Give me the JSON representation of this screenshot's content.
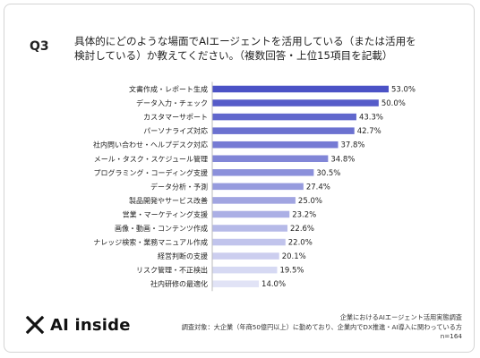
{
  "header": {
    "question_number": "Q3",
    "question_line1": "具体的にどのような場面でAIエージェントを活用している（または活用を",
    "question_line2": "検討している）か教えてください。（複数回答・上位15項目を記載）"
  },
  "chart_data": {
    "type": "bar",
    "orientation": "horizontal",
    "categories": [
      "文書作成・レポート生成",
      "データ入力・チェック",
      "カスタマーサポート",
      "パーソナライズ対応",
      "社内問い合わせ・ヘルプデスク対応",
      "メール・タスク・スケジュール管理",
      "プログラミング・コーディング支援",
      "データ分析・予測",
      "製品開発やサービス改善",
      "営業・マーケティング支援",
      "画像・動画・コンテンツ作成",
      "ナレッジ検索・業務マニュアル作成",
      "経営判断の支援",
      "リスク管理・不正検出",
      "社内研修の最適化"
    ],
    "values": [
      53.0,
      50.0,
      43.3,
      42.7,
      37.8,
      34.8,
      30.5,
      27.4,
      25.0,
      23.2,
      22.6,
      22.0,
      20.1,
      19.5,
      14.0
    ],
    "value_labels": [
      "53.0%",
      "50.0%",
      "43.3%",
      "42.7%",
      "37.8%",
      "34.8%",
      "30.5%",
      "27.4%",
      "25.0%",
      "23.2%",
      "22.6%",
      "22.0%",
      "20.1%",
      "19.5%",
      "14.0%"
    ],
    "xlim": [
      0,
      53.0
    ],
    "grid": false,
    "colors": {
      "start": "#4b52c6",
      "end": "#e1e3f6",
      "axis": "#bbbbbb"
    }
  },
  "footer": {
    "logo_text": "AI inside",
    "logo_icon": "x-mark-icon",
    "survey_title": "企業におけるAIエージェント活用実態調査",
    "survey_target": "調査対象：大企業（年商50億円以上）に勤めており、企業内でDX推進・AI導入に関わっている方",
    "sample_size": "n=164"
  }
}
